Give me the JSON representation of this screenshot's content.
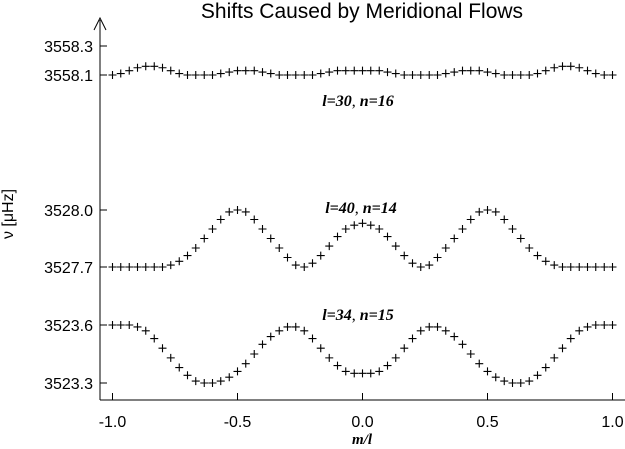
{
  "chart_data": {
    "type": "scatter",
    "title": "Shifts Caused by Meridional Flows",
    "xlabel": "m/l",
    "ylabel": "ν [μHz]",
    "xlim": [
      -1.05,
      1.05
    ],
    "xticks": [
      "-1.0",
      "-0.5",
      "0.0",
      "0.5",
      "1.0"
    ],
    "xtick_values": [
      -1.0,
      -0.5,
      0.0,
      0.5,
      1.0
    ],
    "yticks": [
      "3558.3",
      "3558.1",
      "3528.0",
      "3527.7",
      "3523.6",
      "3523.3"
    ],
    "marker": "+",
    "color": "#000000",
    "panels": [
      {
        "label_parts": [
          "l=30",
          ", ",
          "n=16"
        ],
        "ticks": [
          "3558.3",
          "3558.1"
        ],
        "series": {
          "x": [
            -1.0,
            -0.967,
            -0.933,
            -0.9,
            -0.867,
            -0.833,
            -0.8,
            -0.767,
            -0.733,
            -0.7,
            -0.667,
            -0.633,
            -0.6,
            -0.567,
            -0.533,
            -0.5,
            -0.467,
            -0.433,
            -0.4,
            -0.367,
            -0.333,
            -0.3,
            -0.267,
            -0.233,
            -0.2,
            -0.167,
            -0.133,
            -0.1,
            -0.067,
            -0.033,
            0.0,
            0.033,
            0.067,
            0.1,
            0.133,
            0.167,
            0.2,
            0.233,
            0.267,
            0.3,
            0.333,
            0.367,
            0.4,
            0.433,
            0.467,
            0.5,
            0.533,
            0.567,
            0.6,
            0.633,
            0.667,
            0.7,
            0.733,
            0.767,
            0.8,
            0.833,
            0.867,
            0.9,
            0.933,
            0.967,
            1.0
          ],
          "y": [
            3558.1,
            3558.11,
            3558.13,
            3558.15,
            3558.16,
            3558.16,
            3558.15,
            3558.13,
            3558.11,
            3558.1,
            3558.1,
            3558.1,
            3558.1,
            3558.11,
            3558.12,
            3558.13,
            3558.13,
            3558.13,
            3558.12,
            3558.11,
            3558.1,
            3558.1,
            3558.1,
            3558.1,
            3558.1,
            3558.11,
            3558.12,
            3558.13,
            3558.13,
            3558.13,
            3558.13,
            3558.13,
            3558.13,
            3558.12,
            3558.11,
            3558.1,
            3558.1,
            3558.1,
            3558.1,
            3558.1,
            3558.11,
            3558.12,
            3558.13,
            3558.13,
            3558.13,
            3558.12,
            3558.11,
            3558.1,
            3558.1,
            3558.1,
            3558.1,
            3558.11,
            3558.13,
            3558.15,
            3558.16,
            3558.16,
            3558.15,
            3558.13,
            3558.11,
            3558.1,
            3558.1
          ]
        }
      },
      {
        "label_parts": [
          "l=40",
          ", ",
          "n=14"
        ],
        "ticks": [
          "3528.0",
          "3527.7"
        ],
        "series": {
          "x": [
            -1.0,
            -0.967,
            -0.933,
            -0.9,
            -0.867,
            -0.833,
            -0.8,
            -0.767,
            -0.733,
            -0.7,
            -0.667,
            -0.633,
            -0.6,
            -0.567,
            -0.533,
            -0.5,
            -0.467,
            -0.433,
            -0.4,
            -0.367,
            -0.333,
            -0.3,
            -0.267,
            -0.233,
            -0.2,
            -0.167,
            -0.133,
            -0.1,
            -0.067,
            -0.033,
            0.0,
            0.033,
            0.067,
            0.1,
            0.133,
            0.167,
            0.2,
            0.233,
            0.267,
            0.3,
            0.333,
            0.367,
            0.4,
            0.433,
            0.467,
            0.5,
            0.533,
            0.567,
            0.6,
            0.633,
            0.667,
            0.7,
            0.733,
            0.767,
            0.8,
            0.833,
            0.867,
            0.9,
            0.933,
            0.967,
            1.0
          ],
          "y": [
            3527.7,
            3527.7,
            3527.7,
            3527.7,
            3527.7,
            3527.7,
            3527.7,
            3527.71,
            3527.73,
            3527.76,
            3527.8,
            3527.85,
            3527.9,
            3527.95,
            3527.99,
            3528.0,
            3527.99,
            3527.95,
            3527.9,
            3527.85,
            3527.8,
            3527.75,
            3527.71,
            3527.7,
            3527.72,
            3527.76,
            3527.81,
            3527.86,
            3527.9,
            3527.92,
            3527.93,
            3527.92,
            3527.9,
            3527.86,
            3527.81,
            3527.76,
            3527.72,
            3527.7,
            3527.71,
            3527.75,
            3527.8,
            3527.85,
            3527.9,
            3527.95,
            3527.99,
            3528.0,
            3527.99,
            3527.95,
            3527.9,
            3527.85,
            3527.8,
            3527.76,
            3527.73,
            3527.71,
            3527.7,
            3527.7,
            3527.7,
            3527.7,
            3527.7,
            3527.7,
            3527.7
          ]
        }
      },
      {
        "label_parts": [
          "l=34",
          ", ",
          "n=15"
        ],
        "ticks": [
          "3523.6",
          "3523.3"
        ],
        "series": {
          "x": [
            -1.0,
            -0.967,
            -0.933,
            -0.9,
            -0.867,
            -0.833,
            -0.8,
            -0.767,
            -0.733,
            -0.7,
            -0.667,
            -0.633,
            -0.6,
            -0.567,
            -0.533,
            -0.5,
            -0.467,
            -0.433,
            -0.4,
            -0.367,
            -0.333,
            -0.3,
            -0.267,
            -0.233,
            -0.2,
            -0.167,
            -0.133,
            -0.1,
            -0.067,
            -0.033,
            0.0,
            0.033,
            0.067,
            0.1,
            0.133,
            0.167,
            0.2,
            0.233,
            0.267,
            0.3,
            0.333,
            0.367,
            0.4,
            0.433,
            0.467,
            0.5,
            0.533,
            0.567,
            0.6,
            0.633,
            0.667,
            0.7,
            0.733,
            0.767,
            0.8,
            0.833,
            0.867,
            0.9,
            0.933,
            0.967,
            1.0
          ],
          "y": [
            3523.6,
            3523.6,
            3523.6,
            3523.59,
            3523.57,
            3523.53,
            3523.48,
            3523.43,
            3523.38,
            3523.34,
            3523.31,
            3523.3,
            3523.3,
            3523.31,
            3523.33,
            3523.36,
            3523.4,
            3523.45,
            3523.5,
            3523.54,
            3523.57,
            3523.59,
            3523.59,
            3523.57,
            3523.53,
            3523.48,
            3523.43,
            3523.39,
            3523.36,
            3523.35,
            3523.35,
            3523.35,
            3523.36,
            3523.39,
            3523.43,
            3523.48,
            3523.53,
            3523.57,
            3523.59,
            3523.59,
            3523.57,
            3523.54,
            3523.5,
            3523.45,
            3523.4,
            3523.36,
            3523.33,
            3523.31,
            3523.3,
            3523.3,
            3523.31,
            3523.34,
            3523.38,
            3523.43,
            3523.48,
            3523.53,
            3523.57,
            3523.59,
            3523.6,
            3523.6,
            3523.6
          ]
        }
      }
    ]
  }
}
